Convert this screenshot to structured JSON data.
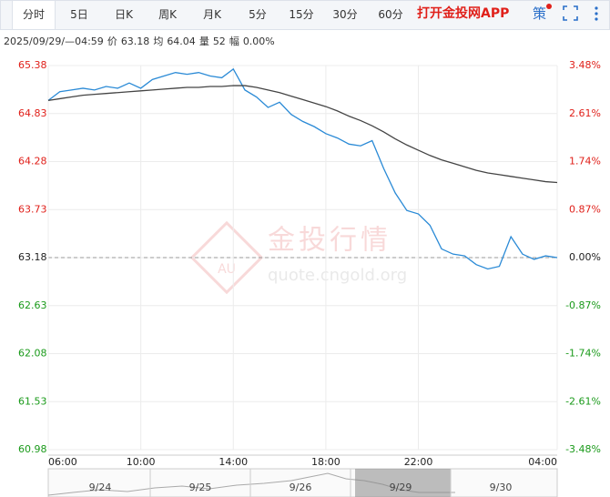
{
  "tabs": [
    "分时",
    "5日",
    "日K",
    "周K",
    "月K",
    "5分",
    "15分",
    "30分",
    "60分"
  ],
  "app_link": "打开金投网APP",
  "strategy": "策",
  "info": {
    "datetime": "2025/09/29/—04:59",
    "fields": [
      {
        "label": "价",
        "value": "63.18"
      },
      {
        "label": "均",
        "value": "64.04"
      },
      {
        "label": "量",
        "value": "52"
      },
      {
        "label": "幅",
        "value": "0.00%"
      }
    ]
  },
  "watermark": {
    "logo": "AU",
    "title": "金投行情",
    "url": "quote.cngold.org"
  },
  "navigator": {
    "labels": [
      "9/24",
      "9/25",
      "9/26",
      "9/29",
      "9/30"
    ]
  },
  "chart_data": {
    "type": "line",
    "x": [
      "06:00",
      "06:30",
      "07:00",
      "07:30",
      "08:00",
      "08:30",
      "09:00",
      "09:30",
      "10:00",
      "10:30",
      "11:00",
      "11:30",
      "12:00",
      "12:30",
      "13:00",
      "13:30",
      "14:00",
      "14:30",
      "15:00",
      "15:30",
      "16:00",
      "16:30",
      "17:00",
      "17:30",
      "18:00",
      "18:30",
      "19:00",
      "19:30",
      "20:00",
      "20:30",
      "21:00",
      "21:30",
      "22:00",
      "22:30",
      "23:00",
      "23:30",
      "00:00",
      "00:30",
      "01:00",
      "01:30",
      "02:00",
      "02:30",
      "03:00",
      "03:30",
      "04:00"
    ],
    "series": [
      {
        "name": "价",
        "color": "#2a8ad6",
        "values": [
          64.98,
          65.08,
          65.1,
          65.12,
          65.1,
          65.14,
          65.12,
          65.18,
          65.12,
          65.22,
          65.26,
          65.3,
          65.28,
          65.3,
          65.26,
          65.24,
          65.34,
          65.1,
          65.02,
          64.9,
          64.96,
          64.82,
          64.74,
          64.68,
          64.6,
          64.55,
          64.48,
          64.46,
          64.52,
          64.2,
          63.92,
          63.72,
          63.68,
          63.55,
          63.28,
          63.22,
          63.2,
          63.1,
          63.05,
          63.08,
          63.42,
          63.22,
          63.16,
          63.2,
          63.18
        ]
      },
      {
        "name": "均",
        "color": "#444444",
        "values": [
          64.98,
          65.0,
          65.02,
          65.04,
          65.05,
          65.06,
          65.07,
          65.08,
          65.09,
          65.1,
          65.11,
          65.12,
          65.13,
          65.13,
          65.14,
          65.14,
          65.15,
          65.15,
          65.13,
          65.1,
          65.07,
          65.03,
          64.99,
          64.95,
          64.91,
          64.86,
          64.8,
          64.75,
          64.69,
          64.62,
          64.54,
          64.47,
          64.41,
          64.35,
          64.3,
          64.26,
          64.22,
          64.18,
          64.15,
          64.13,
          64.11,
          64.09,
          64.07,
          64.05,
          64.04
        ]
      }
    ],
    "xtick_index": [
      0,
      8,
      16,
      24,
      32,
      44
    ],
    "ylim": [
      60.98,
      65.38
    ],
    "yticks": [
      65.38,
      64.83,
      64.28,
      63.73,
      63.18,
      62.63,
      62.08,
      61.53,
      60.98
    ],
    "y2lim": [
      -3.48,
      3.48
    ],
    "y2ticks": [
      {
        "value": 3.48,
        "label": "3.48%"
      },
      {
        "value": 2.61,
        "label": "2.61%"
      },
      {
        "value": 1.74,
        "label": "1.74%"
      },
      {
        "value": 0.87,
        "label": "0.87%"
      },
      {
        "value": 0,
        "label": "0.00%"
      },
      {
        "value": -0.87,
        "label": "-0.87%"
      },
      {
        "value": -1.74,
        "label": "-1.74%"
      },
      {
        "value": -2.61,
        "label": "-2.61%"
      },
      {
        "value": -3.48,
        "label": "-3.48%"
      }
    ],
    "grid": true
  }
}
